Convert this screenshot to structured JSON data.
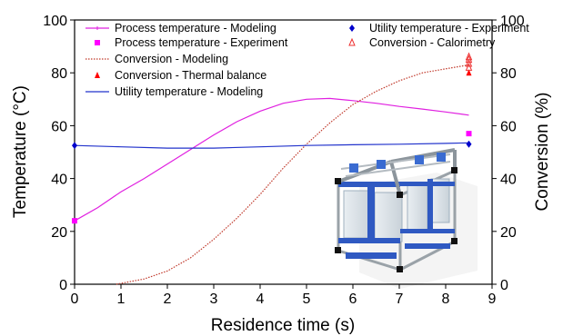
{
  "chart_data": {
    "type": "line",
    "title": "",
    "xlabel": "Residence time (s)",
    "ylabel": "Temperature (°C)",
    "y2label": "Conversion (%)",
    "xlim": [
      0,
      9
    ],
    "ylim": [
      0,
      100
    ],
    "y2lim": [
      0,
      100
    ],
    "xticks": [
      "0",
      "1",
      "2",
      "3",
      "4",
      "5",
      "6",
      "7",
      "8",
      "9"
    ],
    "yticks": [
      "0",
      "20",
      "40",
      "60",
      "80",
      "100"
    ],
    "y2ticks": [
      "0",
      "20",
      "40",
      "60",
      "80",
      "100"
    ],
    "grid": false,
    "legend_placement": "top",
    "series": [
      {
        "name": "Process temperature - Modeling",
        "kind": "line",
        "axis": "left",
        "color": "#e020e0",
        "x": [
          0,
          0.5,
          1,
          1.5,
          2,
          2.5,
          3,
          3.5,
          4,
          4.5,
          5,
          5.5,
          6,
          6.5,
          7,
          7.5,
          8,
          8.5
        ],
        "y": [
          24,
          29,
          35,
          40,
          45.5,
          51,
          56.5,
          61.5,
          65.5,
          68.5,
          70,
          70.3,
          69.5,
          68.5,
          67.3,
          66.3,
          65.2,
          64
        ]
      },
      {
        "name": "Process temperature - Experiment",
        "kind": "marker",
        "marker": "square",
        "axis": "left",
        "color": "#ff00ff",
        "x": [
          0,
          8.5
        ],
        "y": [
          24,
          57
        ]
      },
      {
        "name": "Conversion - Modeling",
        "kind": "line",
        "style": "dotted",
        "axis": "right",
        "color": "#c0392b",
        "x": [
          0.9,
          1.5,
          2,
          2.5,
          3,
          3.5,
          4,
          4.5,
          5,
          5.5,
          6,
          6.5,
          7,
          7.5,
          8,
          8.5
        ],
        "y": [
          0,
          2,
          5,
          10,
          17,
          25,
          34,
          44,
          53,
          61,
          68,
          73,
          77,
          80,
          81.5,
          83
        ]
      },
      {
        "name": "Conversion - Thermal balance",
        "kind": "marker",
        "marker": "triangle",
        "axis": "right",
        "color": "#ff0000",
        "x": [
          8.5
        ],
        "y": [
          80
        ]
      },
      {
        "name": "Utility temperature - Modeling",
        "kind": "line",
        "axis": "left",
        "color": "#2233cc",
        "x": [
          0,
          1,
          2,
          3,
          4,
          5,
          6,
          7,
          8,
          8.5
        ],
        "y": [
          52.5,
          52,
          51.5,
          51.5,
          52,
          52.5,
          52.8,
          53,
          53.3,
          53.5
        ]
      },
      {
        "name": "Utility temperature - Experiment",
        "kind": "marker",
        "marker": "diamond",
        "axis": "left",
        "color": "#0000cc",
        "x": [
          0,
          8.5
        ],
        "y": [
          52.5,
          53
        ]
      },
      {
        "name": "Conversion - Calorimetry",
        "kind": "marker",
        "marker": "open-triangle",
        "axis": "right",
        "color": "#ee3333",
        "x": [
          8.5,
          8.5,
          8.5,
          8.5
        ],
        "y": [
          82,
          83.5,
          85,
          86
        ]
      }
    ]
  }
}
